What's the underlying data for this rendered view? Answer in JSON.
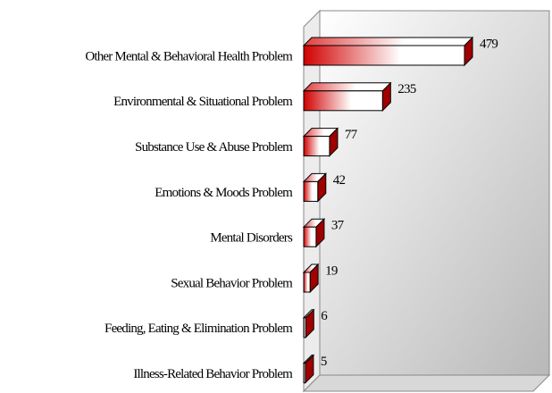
{
  "chart_data": {
    "type": "bar3d_horizontal",
    "categories": [
      "Other Mental & Behavioral Health Problem",
      "Environmental & Situational Problem",
      "Substance Use & Abuse Problem",
      "Emotions & Moods Problem",
      "Mental Disorders",
      "Sexual Behavior Problem",
      "Feeding, Eating & Elimination Problem",
      "Illness-Related Behavior Problem"
    ],
    "values": [
      479,
      235,
      77,
      42,
      37,
      19,
      6,
      5
    ],
    "color": "#d00000"
  }
}
